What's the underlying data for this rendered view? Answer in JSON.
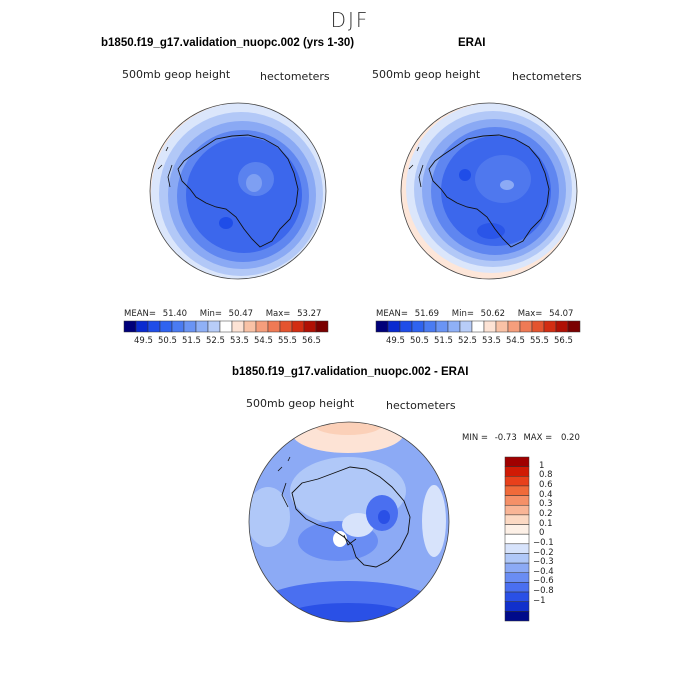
{
  "figure": {
    "season": "DJF",
    "panels": [
      {
        "title": "b1850.f19_g17.validation_nuopc.002 (yrs 1-30)",
        "variable": "500mb geop height",
        "units": "hectometers",
        "stats": {
          "mean_label": "MEAN=",
          "mean": "51.40",
          "min_label": "Min=",
          "min": "50.47",
          "max_label": "Max=",
          "max": "53.27"
        }
      },
      {
        "title": "ERAI",
        "variable": "500mb geop height",
        "units": "hectometers",
        "stats": {
          "mean_label": "MEAN=",
          "mean": "51.69",
          "min_label": "Min=",
          "min": "50.62",
          "max_label": "Max=",
          "max": "54.07"
        }
      },
      {
        "title": "b1850.f19_g17.validation_nuopc.002 - ERAI",
        "variable": "500mb geop height",
        "units": "hectometers",
        "stats": {
          "min_label": "MIN =",
          "min": "-0.73",
          "max_label": "MAX =",
          "max": "0.20"
        }
      }
    ],
    "colorbar_top": {
      "labels": [
        "49.5",
        "50.5",
        "51.5",
        "52.5",
        "53.5",
        "54.5",
        "55.5",
        "56.5"
      ],
      "colors": [
        "#00007a",
        "#0a2bd0",
        "#1f4de8",
        "#2f63f0",
        "#4a7bf2",
        "#6a94f4",
        "#8fb0f6",
        "#b8cdf8",
        "#ffffff",
        "#fde3d5",
        "#f9c2a6",
        "#f59e7c",
        "#ef7a55",
        "#e4542f",
        "#d22d12",
        "#b01004",
        "#7a0000"
      ]
    },
    "colorbar_diff": {
      "labels": [
        "1",
        "0.8",
        "0.6",
        "0.4",
        "0.3",
        "0.2",
        "0.1",
        "0",
        "-0.1",
        "-0.2",
        "-0.3",
        "-0.4",
        "-0.6",
        "-0.8",
        "-1"
      ],
      "colors": [
        "#a00000",
        "#d01a05",
        "#e8401b",
        "#f06a3a",
        "#f59068",
        "#f9b596",
        "#fcd9c3",
        "#fdf0e6",
        "#ffffff",
        "#d7e3fb",
        "#b0c8f8",
        "#8caaf5",
        "#6a8df3",
        "#4a6ff0",
        "#2a50e6",
        "#1130cc",
        "#000a8a"
      ]
    }
  }
}
